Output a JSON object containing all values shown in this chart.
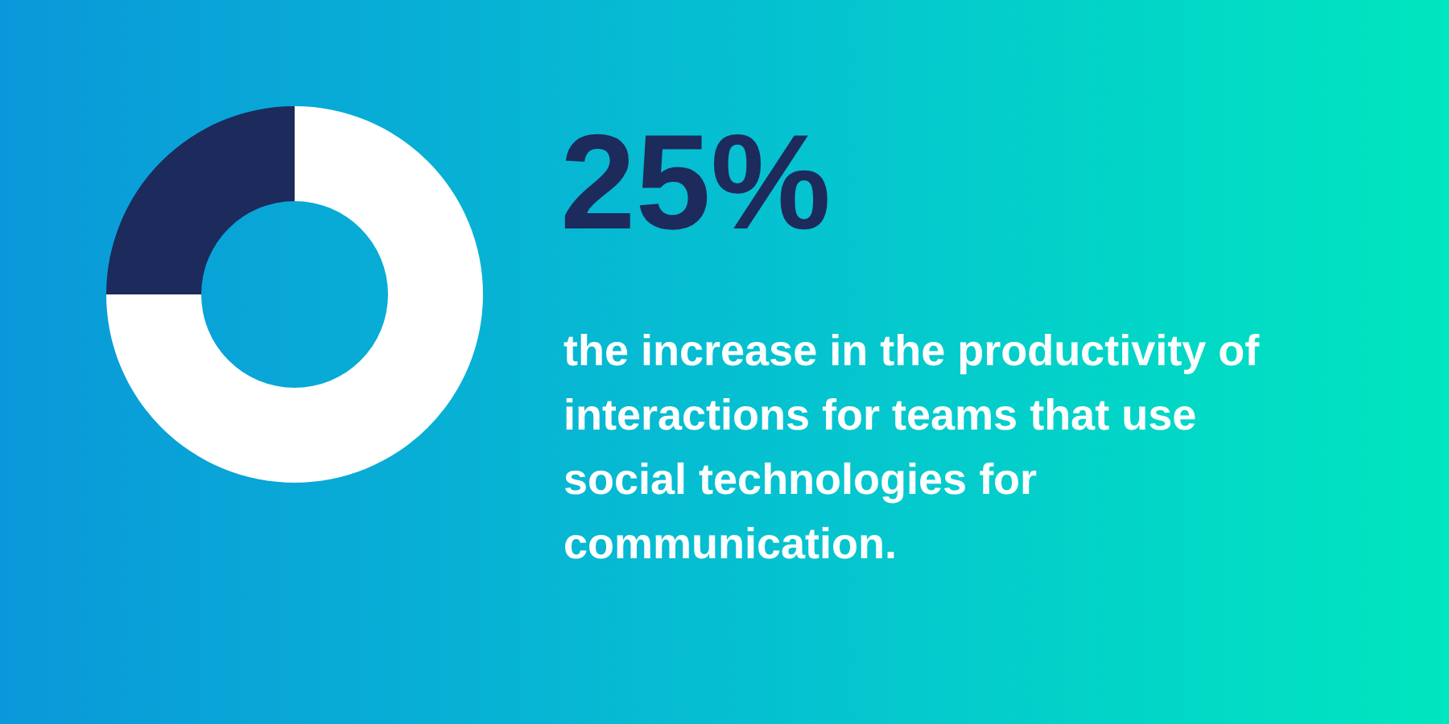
{
  "chart_data": {
    "type": "donut",
    "title": "25%",
    "subtitle": "the increase in the productivity of interactions for teams that use social technologies for communication.",
    "categories": [
      null,
      null
    ],
    "values": [
      75,
      25
    ],
    "colors": [
      "#ffffff",
      "#1c2a5c"
    ]
  }
}
